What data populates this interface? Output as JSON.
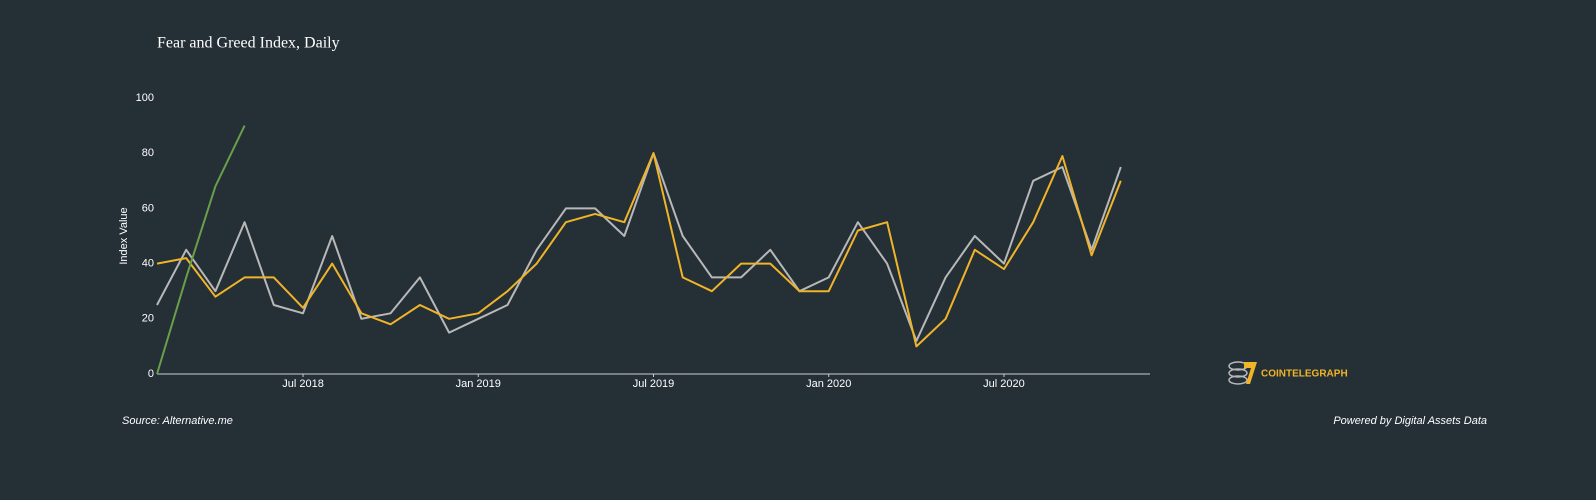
{
  "chart_data": {
    "type": "line",
    "title": "Fear and Greed Index, Daily",
    "ylabel": "Index Value",
    "source": "Source: Alternative.me",
    "credit": "Powered by Digital Assets Data",
    "logo": "COINTELEGRAPH",
    "x": [
      "2018-02",
      "2018-03",
      "2018-04",
      "2018-05",
      "2018-06",
      "2018-07",
      "2018-08",
      "2018-09",
      "2018-10",
      "2018-11",
      "2018-12",
      "2019-01",
      "2019-02",
      "2019-03",
      "2019-04",
      "2019-05",
      "2019-06",
      "2019-07",
      "2019-08",
      "2019-09",
      "2019-10",
      "2019-11",
      "2019-12",
      "2020-01",
      "2020-02",
      "2020-03",
      "2020-04",
      "2020-05",
      "2020-06",
      "2020-07",
      "2020-08",
      "2020-09",
      "2020-10",
      "2020-11"
    ],
    "series": [
      {
        "color": "#b8b8b8",
        "values": [
          25,
          45,
          30,
          55,
          25,
          22,
          50,
          20,
          22,
          35,
          15,
          20,
          25,
          45,
          60,
          60,
          50,
          80,
          50,
          35,
          35,
          45,
          30,
          35,
          55,
          40,
          12,
          35,
          50,
          40,
          70,
          75,
          45,
          75
        ]
      },
      {
        "color": "#f0b429",
        "values": [
          40,
          42,
          28,
          35,
          35,
          24,
          40,
          22,
          18,
          25,
          20,
          22,
          30,
          40,
          55,
          58,
          55,
          80,
          35,
          30,
          40,
          40,
          30,
          30,
          52,
          55,
          10,
          20,
          45,
          38,
          55,
          79,
          43,
          70
        ]
      },
      {
        "color": "#6a9f4a",
        "values": [
          0,
          35,
          68,
          90,
          null,
          null,
          null,
          null,
          null,
          null,
          null,
          null,
          null,
          null,
          null,
          null,
          null,
          null,
          null,
          null,
          null,
          null,
          null,
          null,
          null,
          null,
          null,
          null,
          null,
          null,
          null,
          null,
          null,
          null
        ]
      }
    ],
    "xlim": [
      "2018-02",
      "2020-12"
    ],
    "xticks": [
      {
        "value": "2018-07",
        "label": "Jul 2018"
      },
      {
        "value": "2019-01",
        "label": "Jan 2019"
      },
      {
        "value": "2019-07",
        "label": "Jul 2019"
      },
      {
        "value": "2020-01",
        "label": "Jan 2020"
      },
      {
        "value": "2020-07",
        "label": "Jul 2020"
      }
    ],
    "ylim": [
      0,
      100
    ],
    "yticks": [
      0,
      20,
      40,
      60,
      80,
      100
    ],
    "grid": false
  }
}
